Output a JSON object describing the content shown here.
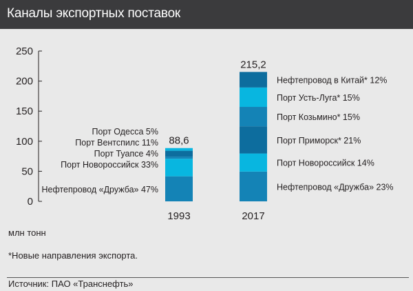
{
  "title": "Каналы экспортных поставок",
  "unit_label": "млн тонн",
  "footnote": "*Новые направления экспорта.",
  "source": "Источник: ПАО «Транснефть»",
  "colors": {
    "header_bg": "#3b3b3d",
    "background": "#e9e9e9",
    "segment_light": "#08b6e0",
    "segment_mid": "#1483b6",
    "segment_dark": "#0d6d9e"
  },
  "chart_data": {
    "type": "bar",
    "stacked": true,
    "categories": [
      "1993",
      "2017"
    ],
    "ylim": [
      0,
      250
    ],
    "yticks": [
      0,
      50,
      100,
      150,
      200,
      250
    ],
    "grid": false,
    "bars": [
      {
        "category": "1993",
        "total": 88.6,
        "total_label": "88,6",
        "segments": [
          {
            "label": "Нефтепровод «Дружба» 47%",
            "share": 47,
            "color": "#1483b6"
          },
          {
            "label": "Порт Новороссийск 33%",
            "share": 33,
            "color": "#08b6e0"
          },
          {
            "label": "Порт Туапсе 4%",
            "share": 4,
            "color": "#1483b6"
          },
          {
            "label": "Порт Вентспилс 11%",
            "share": 11,
            "color": "#0d6d9e"
          },
          {
            "label": "Порт Одесса 5%",
            "share": 5,
            "color": "#08b6e0"
          }
        ]
      },
      {
        "category": "2017",
        "total": 215.2,
        "total_label": "215,2",
        "segments": [
          {
            "label": "Нефтепровод «Дружба» 23%",
            "share": 23,
            "color": "#1483b6"
          },
          {
            "label": "Порт Новороссийск 14%",
            "share": 14,
            "color": "#08b6e0"
          },
          {
            "label": "Порт Приморск* 21%",
            "share": 21,
            "color": "#0d6d9e"
          },
          {
            "label": "Порт Козьмино* 15%",
            "share": 15,
            "color": "#1483b6"
          },
          {
            "label": "Порт Усть-Луга* 15%",
            "share": 15,
            "color": "#08b6e0"
          },
          {
            "label": "Нефтепровод в Китай* 12%",
            "share": 12,
            "color": "#0d6d9e"
          }
        ]
      }
    ]
  }
}
